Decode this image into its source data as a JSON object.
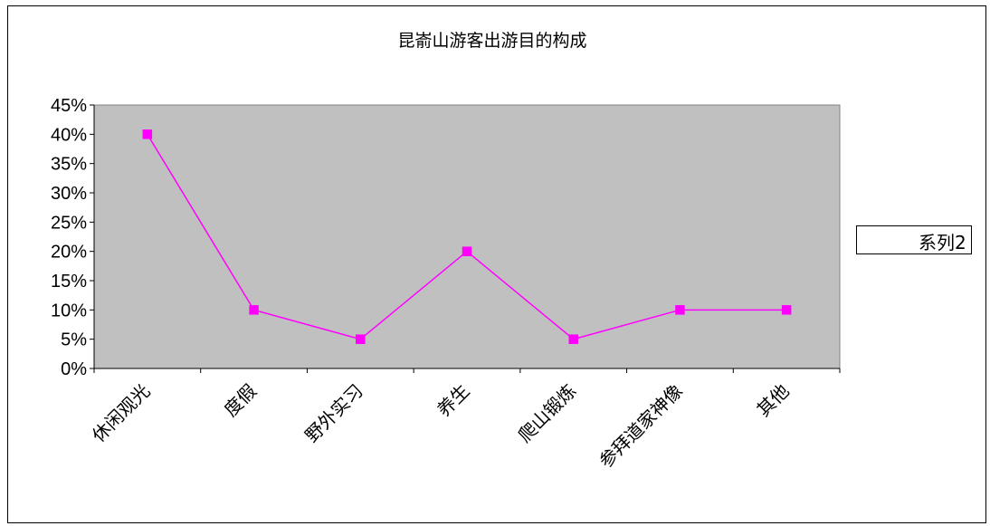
{
  "chart_data": {
    "type": "line",
    "title": "昆嵛山游客出游目的构成",
    "categories": [
      "休闲观光",
      "度假",
      "野外实习",
      "养生",
      "爬山锻炼",
      "参拜道家神像",
      "其他"
    ],
    "series": [
      {
        "name": "系列2",
        "values": [
          0.4,
          0.1,
          0.05,
          0.2,
          0.05,
          0.1,
          0.1
        ],
        "color": "#ff00ff",
        "marker": "square"
      }
    ],
    "ylim": [
      0,
      0.45
    ],
    "yticks": [
      "0%",
      "5%",
      "10%",
      "15%",
      "20%",
      "25%",
      "30%",
      "35%",
      "40%",
      "45%"
    ],
    "plot_background": "#c0c0c0",
    "legend_position": "right"
  }
}
